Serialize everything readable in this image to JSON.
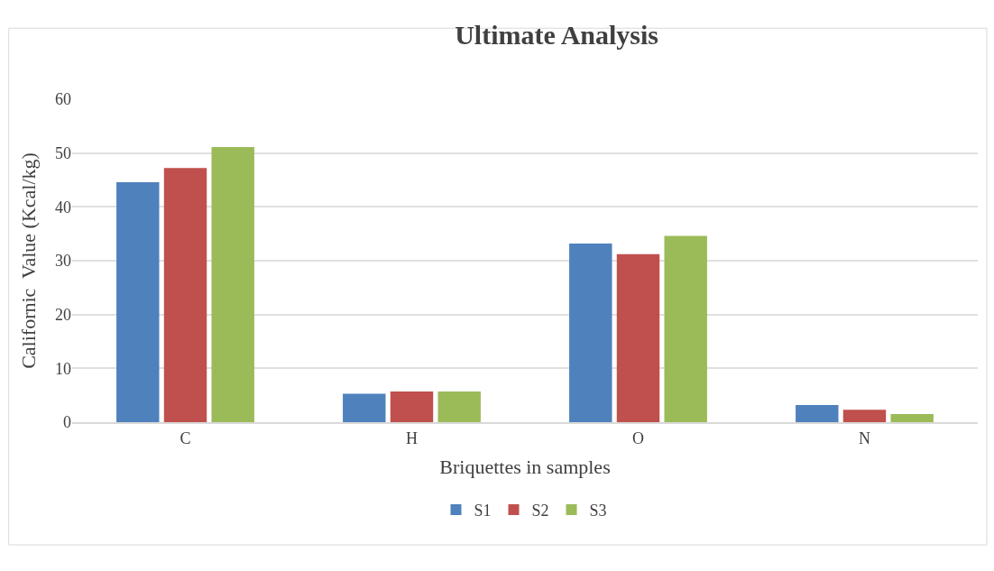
{
  "chart_data": {
    "type": "bar",
    "title": "Ultimate Analysis",
    "xlabel": "Briquettes in samples",
    "ylabel": "Californic  Value (Kcal/kg)",
    "categories": [
      "C",
      "H",
      "O",
      "N"
    ],
    "series": [
      {
        "name": "S1",
        "color": "#4f81bd",
        "values": [
          44.6,
          5.3,
          33.2,
          3.2
        ]
      },
      {
        "name": "S2",
        "color": "#c0504d",
        "values": [
          47.2,
          5.7,
          31.2,
          2.3
        ]
      },
      {
        "name": "S3",
        "color": "#9bbb59",
        "values": [
          51.1,
          5.7,
          34.6,
          1.5
        ]
      }
    ],
    "ylim": [
      0,
      60
    ],
    "yticks": [
      0,
      10,
      20,
      30,
      40,
      50,
      60
    ],
    "grid": "y",
    "legend": "bottom"
  }
}
